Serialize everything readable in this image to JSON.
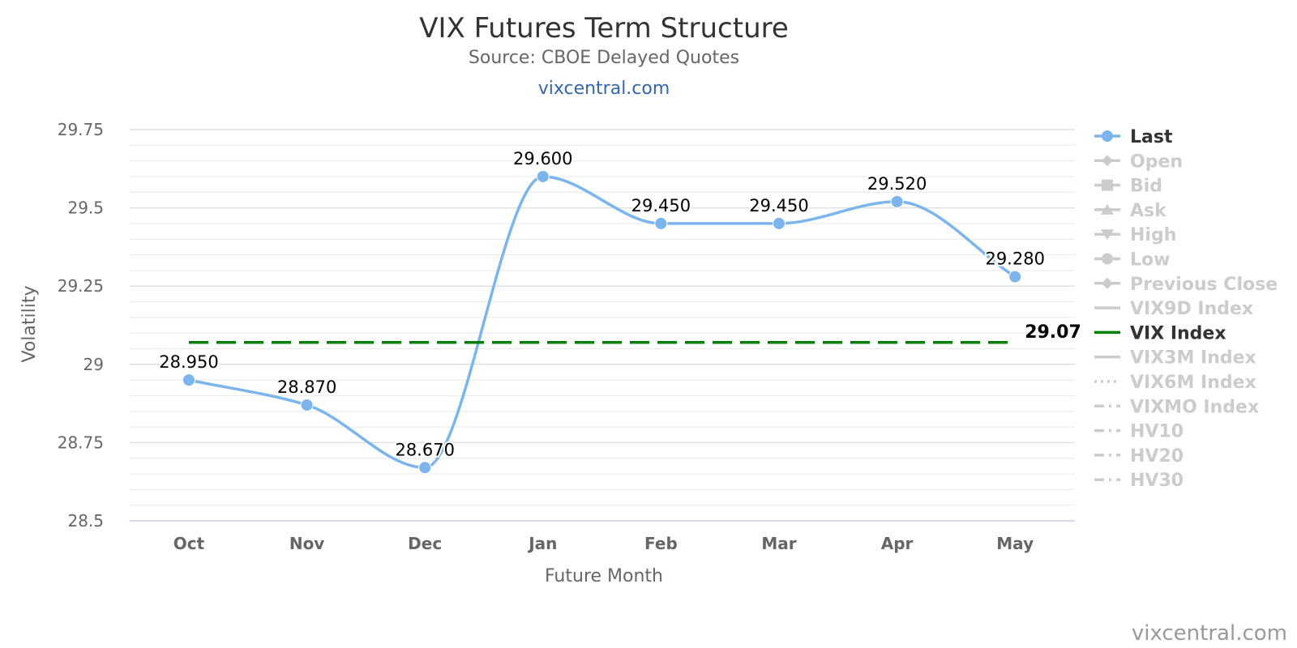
{
  "chart_data": {
    "type": "line",
    "title": "VIX Futures Term Structure",
    "subtitle": "Source: CBOE Delayed Quotes",
    "subtitle_link": "vixcentral.com",
    "credits": "vixcentral.com",
    "xlabel": "Future Month",
    "ylabel": "Volatility",
    "categories": [
      "Oct",
      "Nov",
      "Dec",
      "Jan",
      "Feb",
      "Mar",
      "Apr",
      "May"
    ],
    "ylim": [
      28.5,
      29.75
    ],
    "yticks": [
      {
        "value": 28.5,
        "label": "28.5"
      },
      {
        "value": 28.75,
        "label": "28.75"
      },
      {
        "value": 29,
        "label": "29"
      },
      {
        "value": 29.25,
        "label": "29.25"
      },
      {
        "value": 29.5,
        "label": "29.5"
      },
      {
        "value": 29.75,
        "label": "29.75"
      }
    ],
    "minor_gridlines_per_major": 5,
    "grid": true,
    "legend_position": "right",
    "series": [
      {
        "name": "Last",
        "values": [
          28.95,
          28.87,
          28.67,
          29.6,
          29.45,
          29.45,
          29.52,
          29.28
        ],
        "labels": [
          "28.950",
          "28.870",
          "28.670",
          "29.600",
          "29.450",
          "29.450",
          "29.520",
          "29.280"
        ],
        "color": "#7cb5ec",
        "smooth": true
      },
      {
        "name": "VIX Index",
        "constant": 29.07,
        "label": "29.07",
        "color": "#008000",
        "dash": "long-dash"
      }
    ],
    "legend": [
      {
        "name": "Last",
        "active": true,
        "symbol": "circle",
        "line": "solid",
        "color": "#7cb5ec"
      },
      {
        "name": "Open",
        "active": false,
        "symbol": "diamond",
        "line": "solid"
      },
      {
        "name": "Bid",
        "active": false,
        "symbol": "square",
        "line": "solid"
      },
      {
        "name": "Ask",
        "active": false,
        "symbol": "triangle",
        "line": "solid"
      },
      {
        "name": "High",
        "active": false,
        "symbol": "triangle-down",
        "line": "solid"
      },
      {
        "name": "Low",
        "active": false,
        "symbol": "circle",
        "line": "solid"
      },
      {
        "name": "Previous Close",
        "active": false,
        "symbol": "diamond",
        "line": "solid"
      },
      {
        "name": "VIX9D Index",
        "active": false,
        "symbol": "none",
        "line": "solid"
      },
      {
        "name": "VIX Index",
        "active": true,
        "symbol": "none",
        "line": "solid",
        "color": "#008000"
      },
      {
        "name": "VIX3M Index",
        "active": false,
        "symbol": "none",
        "line": "solid"
      },
      {
        "name": "VIX6M Index",
        "active": false,
        "symbol": "none",
        "line": "dotted"
      },
      {
        "name": "VIXMO Index",
        "active": false,
        "symbol": "none",
        "line": "dashdot"
      },
      {
        "name": "HV10",
        "active": false,
        "symbol": "none",
        "line": "dashdot"
      },
      {
        "name": "HV20",
        "active": false,
        "symbol": "none",
        "line": "dashdot"
      },
      {
        "name": "HV30",
        "active": false,
        "symbol": "none",
        "line": "dashdot"
      }
    ],
    "colors": {
      "active_legend_text": "#333333",
      "inactive_legend": "#cccccc",
      "axis_text": "#666666",
      "grid": "#e6e6e6",
      "link": "#3366aa",
      "title": "#333333"
    }
  }
}
